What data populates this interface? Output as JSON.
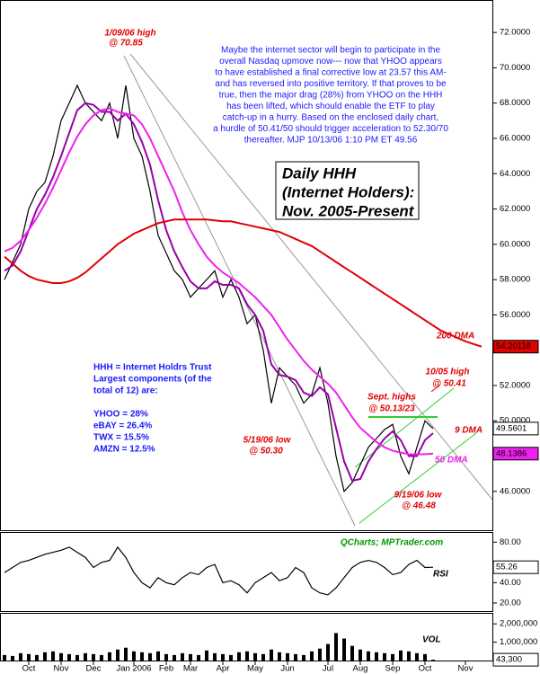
{
  "chart_data": [
    {
      "type": "line",
      "title_lines": [
        "Daily HHH",
        "(Internet Holders):",
        "Nov. 2005-Present"
      ],
      "categories": [
        null,
        null,
        null,
        "Oct",
        null,
        null,
        null,
        "Nov",
        null,
        null,
        null,
        "Dec",
        null,
        null,
        null,
        null,
        "Jan 2006",
        null,
        null,
        null,
        "Feb",
        null,
        null,
        "Mar",
        null,
        null,
        null,
        "Apr",
        null,
        null,
        null,
        "May",
        null,
        null,
        null,
        "Jun",
        null,
        null,
        null,
        null,
        "Jul",
        null,
        null,
        null,
        "Aug",
        null,
        null,
        null,
        "Sep",
        null,
        null,
        null,
        "Oct",
        null,
        null,
        null,
        null,
        "Nov",
        null,
        null
      ],
      "series": [
        {
          "color": "#000000",
          "values": [
            58.0,
            59.0,
            60.0,
            62.0,
            63.0,
            63.5,
            65.0,
            67.0,
            68.0,
            69.0,
            68.0,
            67.5,
            67.0,
            68.0,
            66.0,
            69.0,
            66.0,
            65.0,
            63.0,
            60.5,
            59.5,
            58.5,
            58.0,
            57.0,
            57.5,
            58.0,
            58.5,
            57.0,
            58.0,
            57.0,
            55.5,
            56.0,
            54.0,
            51.0,
            53.0,
            52.5,
            52.0,
            51.0,
            51.5,
            53.0,
            51.0,
            48.0,
            46.0,
            46.5,
            47.5,
            48.5,
            49.0,
            49.5,
            49.8,
            48.0,
            47.0,
            48.5,
            50.0,
            49.5601,
            null,
            null,
            null,
            null,
            null,
            null
          ],
          "value_labels": [
            null,
            null,
            null,
            null,
            null,
            null,
            null,
            null,
            null,
            null,
            null,
            null,
            null,
            null,
            null,
            null,
            null,
            null,
            null,
            null,
            null,
            null,
            null,
            null,
            null,
            null,
            null,
            null,
            null,
            null,
            null,
            null,
            null,
            null,
            null,
            null,
            null,
            null,
            null,
            null,
            null,
            null,
            null,
            null,
            null,
            null,
            null,
            null,
            null,
            null,
            null,
            null,
            null,
            "49.5601",
            null,
            null,
            null,
            null,
            null,
            null
          ]
        },
        {
          "name": "9 DMA",
          "color": "#9900aa",
          "values": [
            58.5,
            58.8,
            59.6,
            60.8,
            62.0,
            62.8,
            63.8,
            65.0,
            66.3,
            67.6,
            68.0,
            67.9,
            67.5,
            67.5,
            67.0,
            67.4,
            66.8,
            65.8,
            64.5,
            62.5,
            60.8,
            59.6,
            58.7,
            57.9,
            57.5,
            57.5,
            57.9,
            57.7,
            57.7,
            57.5,
            56.6,
            56.0,
            55.1,
            53.2,
            52.6,
            52.5,
            52.3,
            51.6,
            51.4,
            51.9,
            51.5,
            49.6,
            47.7,
            46.6,
            46.7,
            47.7,
            48.4,
            49.0,
            49.4,
            48.9,
            48.0,
            48.0,
            48.9,
            49.3,
            null,
            null,
            null,
            null,
            null,
            null
          ]
        },
        {
          "name": "50 DMA",
          "color": "#ee22ee",
          "values": [
            59.6,
            59.8,
            60.2,
            60.8,
            61.5,
            62.3,
            63.2,
            64.2,
            65.2,
            66.1,
            66.8,
            67.3,
            67.6,
            67.7,
            67.5,
            67.4,
            67.3,
            66.8,
            66.0,
            65.0,
            64.0,
            63.0,
            61.8,
            60.8,
            60.0,
            59.3,
            58.8,
            58.4,
            58.1,
            57.8,
            57.4,
            57.0,
            56.5,
            56.0,
            55.3,
            54.6,
            54.0,
            53.4,
            52.9,
            52.5,
            52.1,
            51.6,
            50.9,
            50.2,
            49.6,
            49.2,
            48.8,
            48.5,
            48.3,
            48.2,
            48.1,
            48.1,
            48.1,
            48.1386,
            null,
            null,
            null,
            null,
            null,
            null
          ],
          "value_labels": [
            null,
            null,
            null,
            null,
            null,
            null,
            null,
            null,
            null,
            null,
            null,
            null,
            null,
            null,
            null,
            null,
            null,
            null,
            null,
            null,
            null,
            null,
            null,
            null,
            null,
            null,
            null,
            null,
            null,
            null,
            null,
            null,
            null,
            null,
            null,
            null,
            null,
            null,
            null,
            null,
            null,
            null,
            null,
            null,
            null,
            null,
            null,
            null,
            null,
            null,
            null,
            null,
            null,
            "48.1386",
            null,
            null,
            null,
            null,
            null,
            null
          ]
        },
        {
          "name": "200 DMA",
          "color": "#e00000",
          "values": [
            59.3,
            58.9,
            58.5,
            58.2,
            58.0,
            57.9,
            57.8,
            57.8,
            57.9,
            58.1,
            58.4,
            58.8,
            59.2,
            59.6,
            60.0,
            60.3,
            60.6,
            60.8,
            61.0,
            61.2,
            61.3,
            61.4,
            61.4,
            61.4,
            61.4,
            61.4,
            61.35,
            61.3,
            61.3,
            61.2,
            61.1,
            61.0,
            60.9,
            60.8,
            60.7,
            60.5,
            60.3,
            60.1,
            59.9,
            59.6,
            59.3,
            59.0,
            58.7,
            58.4,
            58.1,
            57.8,
            57.5,
            57.2,
            56.9,
            56.6,
            56.3,
            56.0,
            55.7,
            55.4,
            55.1,
            54.9,
            54.7,
            54.5,
            54.35,
            54.20118
          ],
          "value_labels": [
            null,
            null,
            null,
            null,
            null,
            null,
            null,
            null,
            null,
            null,
            null,
            null,
            null,
            null,
            null,
            null,
            null,
            null,
            null,
            null,
            null,
            null,
            null,
            null,
            null,
            null,
            null,
            null,
            null,
            null,
            null,
            null,
            null,
            null,
            null,
            null,
            null,
            null,
            null,
            null,
            null,
            null,
            null,
            null,
            null,
            null,
            null,
            null,
            null,
            null,
            null,
            null,
            null,
            null,
            null,
            null,
            null,
            null,
            null,
            "54.20118"
          ]
        }
      ],
      "ylim": [
        43.8,
        73.84
      ],
      "yticks": [
        {
          "value": 46,
          "label": "46.0000"
        },
        {
          "value": 48,
          "label": "48.0000"
        },
        {
          "value": 50,
          "label": "50.0000"
        },
        {
          "value": 52,
          "label": "52.0000"
        },
        {
          "value": 54,
          "label": "54.0000"
        },
        {
          "value": 56,
          "label": "56.0000"
        },
        {
          "value": 58,
          "label": "58.0000"
        },
        {
          "value": 60,
          "label": "60.0000"
        },
        {
          "value": 62,
          "label": "62.0000"
        },
        {
          "value": 64,
          "label": "64.0000"
        },
        {
          "value": 66,
          "label": "66.0000"
        },
        {
          "value": 68,
          "label": "68.0000"
        },
        {
          "value": 70,
          "label": "70.0000"
        },
        {
          "value": 72,
          "label": "72.0000"
        }
      ],
      "grid": false,
      "annotations": [
        "1/09/06 high",
        "@ 70.85",
        "10/05 high",
        "@ 50.41",
        "Sept. highs",
        "@ 50.13/23",
        "5/19/06 low",
        "@ 50.30",
        "9/19/06 low",
        "@ 46.48"
      ],
      "commentary": [
        "Maybe the internet sector will begin to participate in the",
        "overall Nasdaq upmove now--- now that YHOO appears",
        "to have established a final corrective low at 23.57 this AM-",
        "and has reversed into positive territory. If that proves to be",
        "true, then the major drag (28%) from YHOO on the HHH",
        "has been lifted, which should enable the ETF to play",
        "catch-up in a hurry. Based on the enclosed daily chart,",
        "a hurdle of 50.41/50 should trigger acceleration to 52.30/70",
        "thereafter.  MJP  10/13/06  1:10 PM ET  49.56"
      ],
      "holdings_note": [
        "HHH = Internet Holdrs Trust",
        "Largest components (of the",
        "total of 12) are:",
        "YHOO = 28%",
        "eBAY = 26.4%",
        "TWX = 15.5%",
        "AMZN = 12.5%"
      ],
      "source": "QCharts; MPTrader.com"
    },
    {
      "type": "line",
      "title": "RSI",
      "series": [
        {
          "color": "#000000",
          "values": [
            50,
            55,
            60,
            62,
            65,
            68,
            70,
            72,
            75,
            70,
            65,
            55,
            60,
            62,
            75,
            65,
            50,
            40,
            35,
            45,
            40,
            38,
            45,
            50,
            48,
            55,
            58,
            40,
            42,
            38,
            30,
            40,
            45,
            50,
            42,
            45,
            55,
            50,
            35,
            30,
            28,
            35,
            45,
            55,
            60,
            62,
            60,
            55,
            48,
            50,
            58,
            62,
            55,
            55.26
          ],
          "value_labels": [
            null,
            null,
            null,
            null,
            null,
            null,
            null,
            null,
            null,
            null,
            null,
            null,
            null,
            null,
            null,
            null,
            null,
            null,
            null,
            null,
            null,
            null,
            null,
            null,
            null,
            null,
            null,
            null,
            null,
            null,
            null,
            null,
            null,
            null,
            null,
            null,
            null,
            null,
            null,
            null,
            null,
            null,
            null,
            null,
            null,
            null,
            null,
            null,
            null,
            null,
            null,
            null,
            null,
            "55.26"
          ]
        }
      ],
      "ylim": [
        12,
        90
      ],
      "yticks": [
        {
          "value": 20,
          "label": "20.00"
        },
        {
          "value": 40,
          "label": "40.00"
        },
        {
          "value": 80,
          "label": "80.00"
        }
      ]
    },
    {
      "type": "bar",
      "title": "VOL",
      "series": [
        {
          "color": "#000000",
          "values": [
            300000,
            250000,
            400000,
            350000,
            300000,
            450000,
            500000,
            400000,
            350000,
            300000,
            400000,
            350000,
            300000,
            450000,
            600000,
            700000,
            500000,
            450000,
            400000,
            500000,
            350000,
            300000,
            400000,
            350000,
            300000,
            550000,
            400000,
            350000,
            300000,
            450000,
            500000,
            400000,
            350000,
            600000,
            450000,
            400000,
            350000,
            300000,
            500000,
            650000,
            900000,
            1500000,
            1200000,
            800000,
            600000,
            500000,
            450000,
            400000,
            350000,
            550000,
            500000,
            400000,
            350000,
            43300
          ],
          "value_labels": [
            null,
            null,
            null,
            null,
            null,
            null,
            null,
            null,
            null,
            null,
            null,
            null,
            null,
            null,
            null,
            null,
            null,
            null,
            null,
            null,
            null,
            null,
            null,
            null,
            null,
            null,
            null,
            null,
            null,
            null,
            null,
            null,
            null,
            null,
            null,
            null,
            null,
            null,
            null,
            null,
            null,
            null,
            null,
            null,
            null,
            null,
            null,
            null,
            null,
            null,
            null,
            null,
            null,
            "43,300"
          ]
        }
      ],
      "ylim": [
        0,
        2600000
      ],
      "yticks": [
        {
          "value": 1000000,
          "label": "1,000,000"
        },
        {
          "value": 2000000,
          "label": "2,000,000"
        }
      ]
    }
  ]
}
